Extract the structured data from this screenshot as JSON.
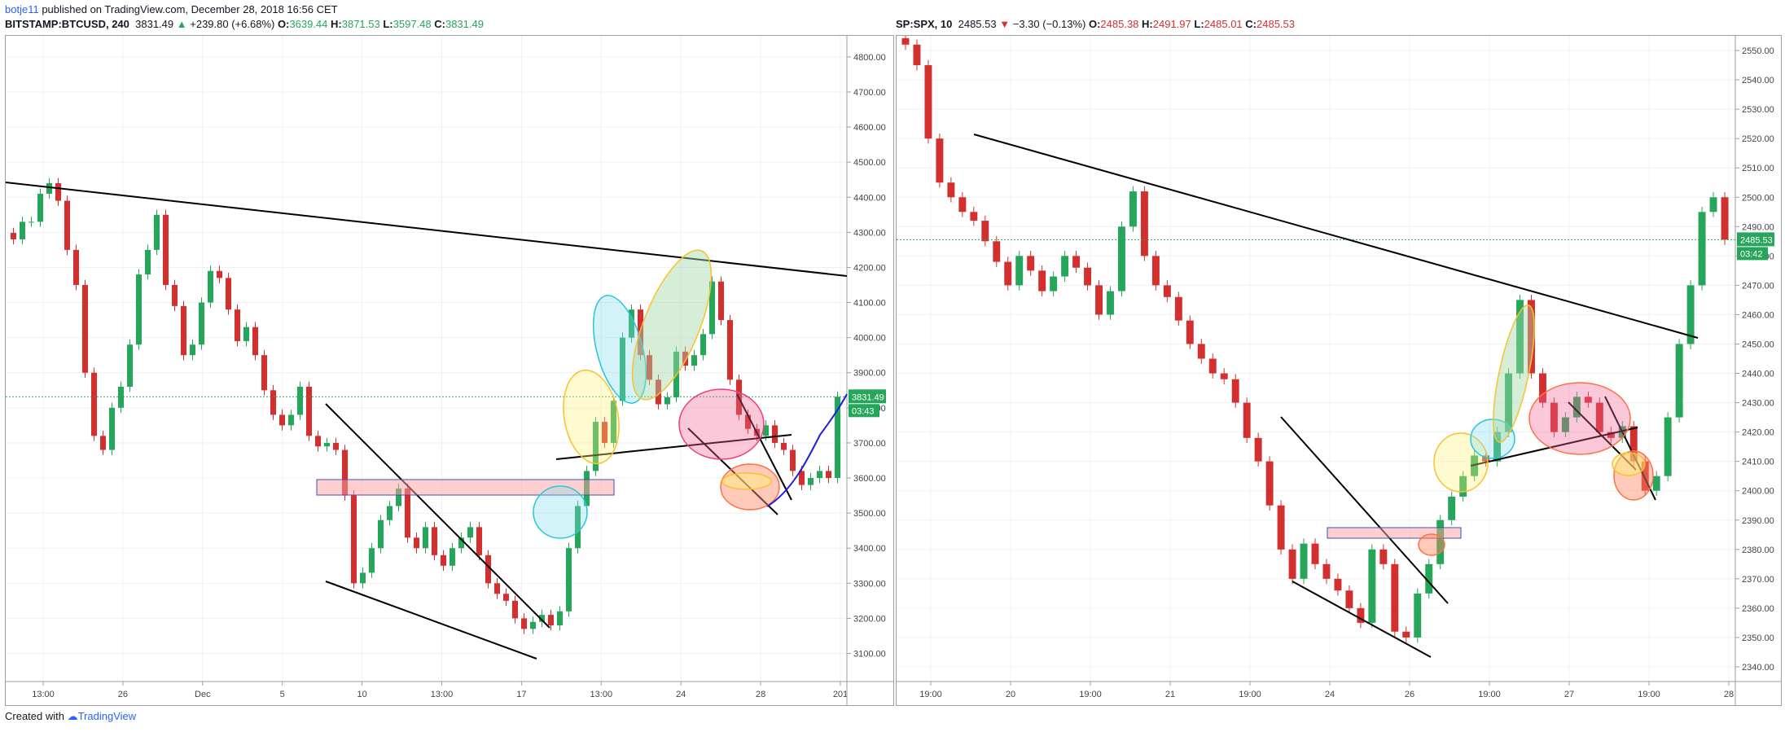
{
  "publisher": {
    "user": "botje11",
    "text": "published on TradingView.com, December 28, 2018 16:56 CET"
  },
  "left": {
    "symbol": "BITSTAMP:BTCUSD, 240",
    "last": "3831.49",
    "change": "+239.80 (+6.68%)",
    "o": "3639.44",
    "h": "3871.53",
    "l": "3597.48",
    "c": "3831.49",
    "price_tag": "3831.49",
    "time_tag": "03:43",
    "colors": {
      "up": "#26a65b",
      "down": "#d32f2f"
    }
  },
  "right": {
    "symbol": "SP:SPX, 10",
    "last": "2485.53",
    "change": "−3.30 (−0.13%)",
    "o": "2485.38",
    "h": "2491.97",
    "l": "2485.01",
    "c": "2485.53",
    "price_tag": "2485.53",
    "time_tag": "03:42"
  },
  "footer": {
    "created": "Created with",
    "brand": "TradingView"
  },
  "chart_data": [
    {
      "type": "candlestick",
      "symbol": "BITSTAMP:BTCUSD",
      "y_ticks": [
        "4800.00",
        "4700.00",
        "4600.00",
        "4500.00",
        "4400.00",
        "4300.00",
        "4200.00",
        "4100.00",
        "4000.00",
        "3900.00",
        "3800.00",
        "3700.00",
        "3600.00",
        "3500.00",
        "3400.00",
        "3300.00",
        "3200.00",
        "3100.00"
      ],
      "ylim": [
        3020,
        4860
      ],
      "x_ticks": [
        "13:00",
        "26",
        "Dec",
        "5",
        "10",
        "13:00",
        "17",
        "13:00",
        "24",
        "28",
        "201"
      ],
      "last_price": 3831.49,
      "close_path": [
        4280,
        4330,
        4330,
        4410,
        4440,
        4390,
        4250,
        4150,
        3900,
        3720,
        3680,
        3800,
        3860,
        3980,
        4180,
        4250,
        4350,
        4150,
        4090,
        3950,
        3980,
        4100,
        4190,
        4170,
        4080,
        3990,
        4030,
        3950,
        3850,
        3780,
        3750,
        3780,
        3860,
        3720,
        3690,
        3700,
        3680,
        3550,
        3300,
        3330,
        3400,
        3480,
        3520,
        3570,
        3430,
        3400,
        3460,
        3380,
        3350,
        3400,
        3430,
        3460,
        3380,
        3300,
        3270,
        3250,
        3200,
        3170,
        3190,
        3210,
        3180,
        3220,
        3400,
        3520,
        3620,
        3760,
        3700,
        3820,
        4000,
        4080,
        3950,
        3880,
        3810,
        3830,
        3960,
        3920,
        3950,
        4010,
        4160,
        4050,
        3880,
        3780,
        3740,
        3720,
        3750,
        3700,
        3680,
        3620,
        3580,
        3600,
        3620,
        3600,
        3831.49
      ]
    },
    {
      "type": "candlestick",
      "symbol": "SP:SPX",
      "y_ticks": [
        "2550.00",
        "2540.00",
        "2530.00",
        "2520.00",
        "2510.00",
        "2500.00",
        "2490.00",
        "2480.00",
        "2470.00",
        "2460.00",
        "2450.00",
        "2440.00",
        "2430.00",
        "2420.00",
        "2410.00",
        "2400.00",
        "2390.00",
        "2380.00",
        "2370.00",
        "2360.00",
        "2350.00",
        "2340.00"
      ],
      "ylim": [
        2335,
        2555
      ],
      "x_ticks": [
        "19:00",
        "20",
        "19:00",
        "21",
        "19:00",
        "24",
        "26",
        "19:00",
        "27",
        "19:00",
        "28"
      ],
      "last_price": 2485.53,
      "close_path": [
        2552,
        2545,
        2520,
        2505,
        2500,
        2495,
        2492,
        2485,
        2478,
        2470,
        2480,
        2475,
        2468,
        2473,
        2480,
        2476,
        2470,
        2460,
        2468,
        2490,
        2502,
        2480,
        2470,
        2466,
        2458,
        2450,
        2445,
        2440,
        2438,
        2430,
        2418,
        2410,
        2395,
        2380,
        2370,
        2382,
        2375,
        2370,
        2366,
        2360,
        2355,
        2380,
        2375,
        2352,
        2350,
        2365,
        2375,
        2390,
        2398,
        2405,
        2412,
        2410,
        2420,
        2440,
        2465,
        2440,
        2430,
        2420,
        2425,
        2432,
        2430,
        2420,
        2418,
        2422,
        2410,
        2400,
        2405,
        2425,
        2450,
        2470,
        2495,
        2500,
        2485.53
      ]
    }
  ]
}
